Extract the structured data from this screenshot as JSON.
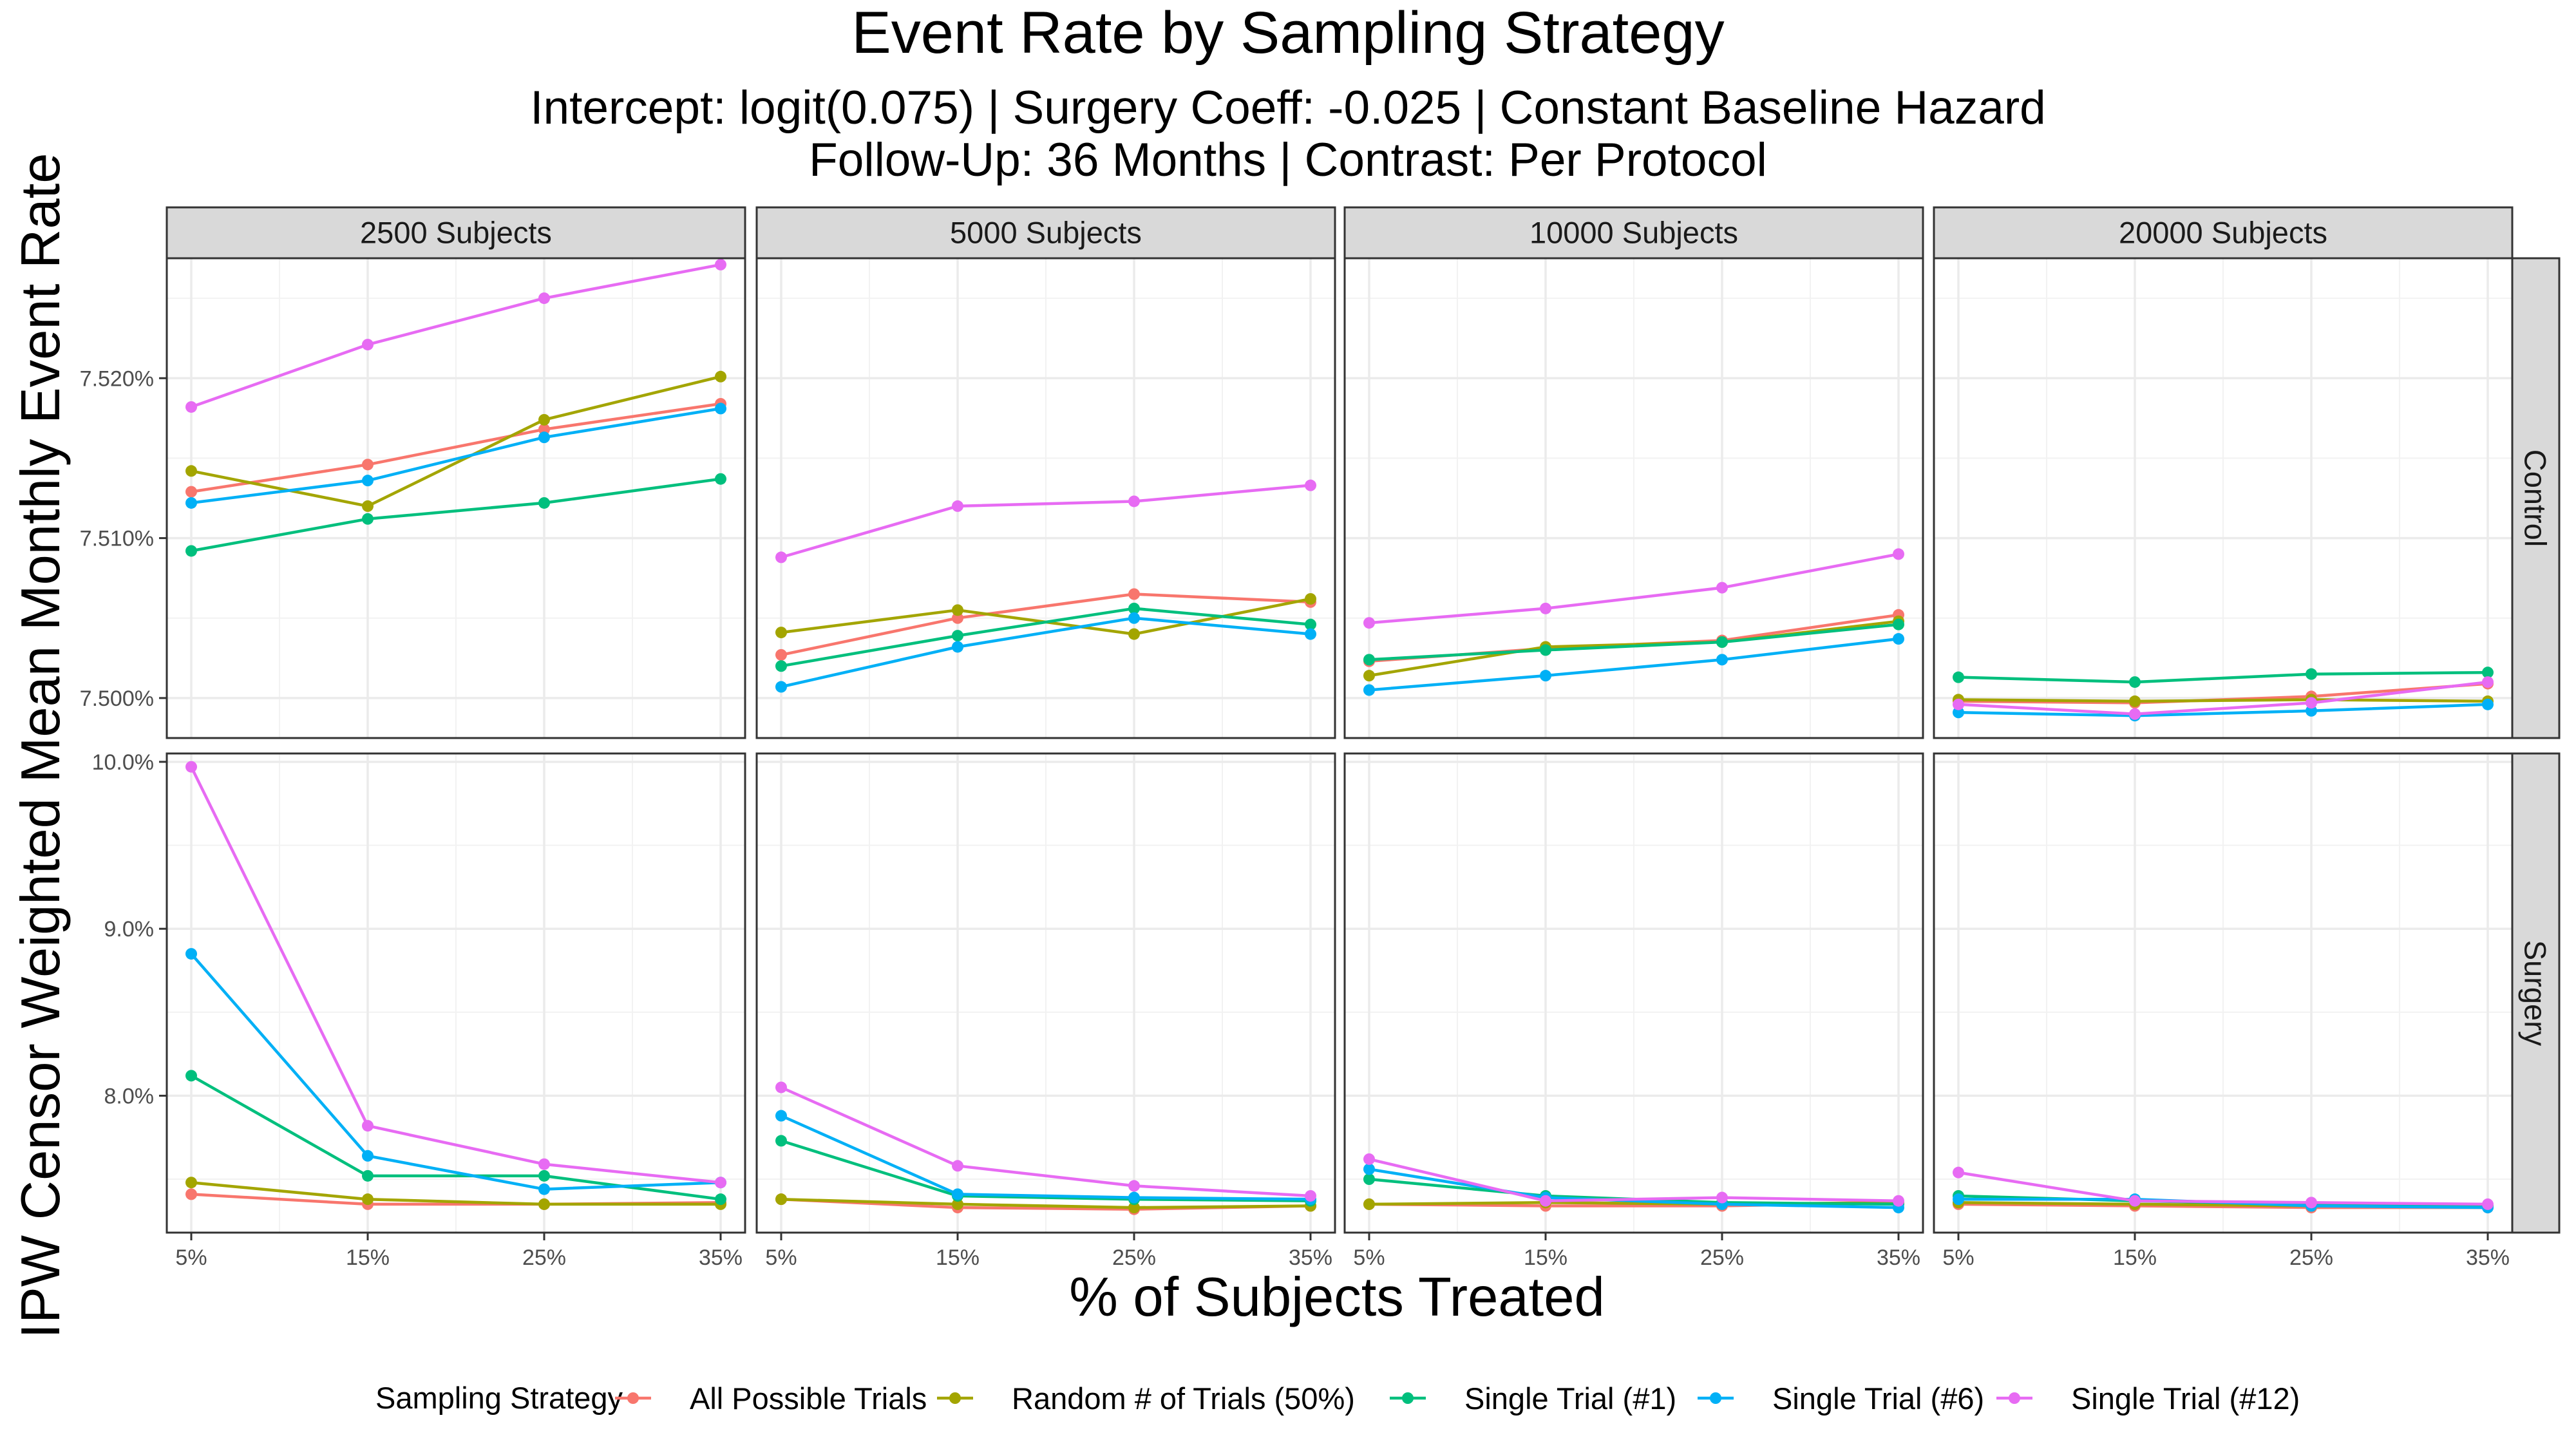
{
  "chart_data": {
    "type": "line",
    "title": "Event Rate by Sampling Strategy",
    "subtitle_lines": [
      "Intercept: logit(0.075) | Surgery Coeff: -0.025 | Constant Baseline Hazard",
      "Follow-Up: 36 Months | Contrast: Per Protocol"
    ],
    "xlabel": "% of Subjects Treated",
    "ylabel": "IPW Censor Weighted Mean Monthly Event Rate",
    "categories": [
      "5%",
      "15%",
      "25%",
      "35%"
    ],
    "facet_columns": [
      "2500 Subjects",
      "5000 Subjects",
      "10000 Subjects",
      "20000 Subjects"
    ],
    "facet_rows": [
      {
        "label": "Control",
        "ylim": [
          7.4975,
          7.5275
        ],
        "yticks": [
          7.5,
          7.51,
          7.52
        ],
        "ytick_labels": [
          "7.500%",
          "7.510%",
          "7.520%"
        ]
      },
      {
        "label": "Surgery",
        "ylim": [
          7.18,
          10.05
        ],
        "yticks": [
          8.0,
          9.0,
          10.0
        ],
        "ytick_labels": [
          "8.0%",
          "9.0%",
          "10.0%"
        ]
      }
    ],
    "legend": {
      "title": "Sampling Strategy",
      "position": "bottom"
    },
    "grid": true,
    "series": [
      {
        "name": "All Possible Trials",
        "color": "#F8766D",
        "values": {
          "Control": [
            [
              7.5129,
              7.5146,
              7.5168,
              7.5184
            ],
            [
              7.5027,
              7.505,
              7.5065,
              7.506
            ],
            [
              7.5023,
              7.5031,
              7.5036,
              7.5052
            ],
            [
              7.4998,
              7.4997,
              7.5001,
              7.5009
            ]
          ],
          "Surgery": [
            [
              7.41,
              7.35,
              7.35,
              7.36
            ],
            [
              7.38,
              7.33,
              7.32,
              7.34
            ],
            [
              7.35,
              7.34,
              7.34,
              7.36
            ],
            [
              7.35,
              7.34,
              7.33,
              7.33
            ]
          ]
        }
      },
      {
        "name": "Random # of Trials (50%)",
        "color": "#A3A500",
        "values": {
          "Control": [
            [
              7.5142,
              7.512,
              7.5174,
              7.5201
            ],
            [
              7.5041,
              7.5055,
              7.504,
              7.5062
            ],
            [
              7.5014,
              7.5032,
              7.5035,
              7.5048
            ],
            [
              7.4999,
              7.4998,
              7.4999,
              7.4998
            ]
          ],
          "Surgery": [
            [
              7.48,
              7.38,
              7.35,
              7.35
            ],
            [
              7.38,
              7.35,
              7.33,
              7.34
            ],
            [
              7.35,
              7.36,
              7.35,
              7.36
            ],
            [
              7.36,
              7.35,
              7.34,
              7.34
            ]
          ]
        }
      },
      {
        "name": "Single Trial (#1)",
        "color": "#00BF7D",
        "values": {
          "Control": [
            [
              7.5092,
              7.5112,
              7.5122,
              7.5137
            ],
            [
              7.502,
              7.5039,
              7.5056,
              7.5046
            ],
            [
              7.5024,
              7.503,
              7.5035,
              7.5046
            ],
            [
              7.5013,
              7.501,
              7.5015,
              7.5016
            ]
          ],
          "Surgery": [
            [
              8.12,
              7.52,
              7.52,
              7.38
            ],
            [
              7.73,
              7.4,
              7.38,
              7.37
            ],
            [
              7.5,
              7.4,
              7.36,
              7.35
            ],
            [
              7.4,
              7.37,
              7.35,
              7.34
            ]
          ]
        }
      },
      {
        "name": "Single Trial (#6)",
        "color": "#00B0F6",
        "values": {
          "Control": [
            [
              7.5122,
              7.5136,
              7.5163,
              7.5181
            ],
            [
              7.5007,
              7.5032,
              7.505,
              7.504
            ],
            [
              7.5005,
              7.5014,
              7.5024,
              7.5037
            ],
            [
              7.4991,
              7.4989,
              7.4992,
              7.4996
            ]
          ],
          "Surgery": [
            [
              8.85,
              7.64,
              7.44,
              7.48
            ],
            [
              7.88,
              7.41,
              7.39,
              7.38
            ],
            [
              7.56,
              7.39,
              7.35,
              7.33
            ],
            [
              7.38,
              7.38,
              7.34,
              7.33
            ]
          ]
        }
      },
      {
        "name": "Single Trial (#12)",
        "color": "#E76BF3",
        "values": {
          "Control": [
            [
              7.5182,
              7.5221,
              7.525,
              7.5271
            ],
            [
              7.5088,
              7.512,
              7.5123,
              7.5133
            ],
            [
              7.5047,
              7.5056,
              7.5069,
              7.509
            ],
            [
              7.4996,
              7.499,
              7.4997,
              7.501
            ]
          ],
          "Surgery": [
            [
              9.97,
              7.82,
              7.59,
              7.48
            ],
            [
              8.05,
              7.58,
              7.46,
              7.4
            ],
            [
              7.62,
              7.37,
              7.39,
              7.37
            ],
            [
              7.54,
              7.37,
              7.36,
              7.35
            ]
          ]
        }
      }
    ]
  }
}
